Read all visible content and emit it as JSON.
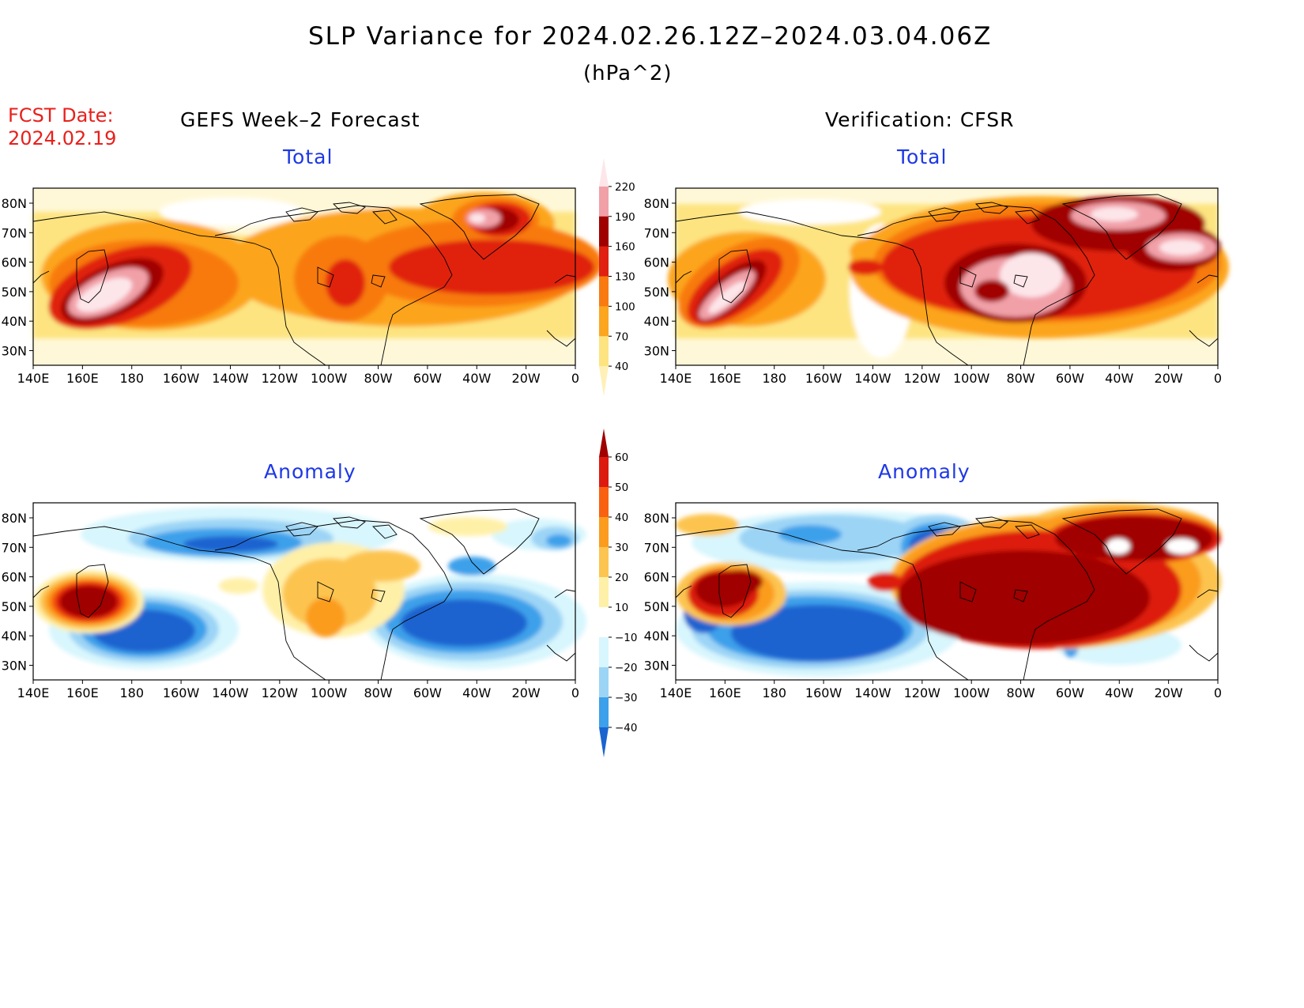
{
  "title": "SLP Variance for 2024.02.26.12Z–2024.03.04.06Z",
  "units": "(hPa^2)",
  "fcst_date_label": "FCST Date:",
  "fcst_date_value": "2024.02.19",
  "columns": {
    "left": "GEFS Week–2 Forecast",
    "right": "Verification: CFSR"
  },
  "panel_labels": {
    "total": "Total",
    "anomaly": "Anomaly"
  },
  "lon_ticks": [
    "140E",
    "160E",
    "180",
    "160W",
    "140W",
    "120W",
    "100W",
    "80W",
    "60W",
    "40W",
    "20W",
    "0"
  ],
  "lat_ticks": [
    "80N",
    "70N",
    "60N",
    "50N",
    "40N",
    "30N"
  ],
  "total_colorbar": {
    "levels": [
      "220",
      "190",
      "160",
      "130",
      "100",
      "70",
      "40"
    ],
    "colors": [
      "#fde6ea",
      "#f1a0a8",
      "#a00000",
      "#e02010",
      "#f87a10",
      "#fca51e",
      "#fde480",
      "#fff0b8"
    ]
  },
  "anomaly_colorbar": {
    "levels": [
      "60",
      "50",
      "40",
      "30",
      "20",
      "10",
      "−10",
      "−20",
      "−30",
      "−40"
    ],
    "colors": [
      "#a00000",
      "#dd1a10",
      "#f96010",
      "#fb9c1e",
      "#fcc450",
      "#fff0a8",
      "#ffffff",
      "#d8f6fd",
      "#9cd4f6",
      "#3ca0ea",
      "#1a64d0"
    ]
  },
  "chart_data": [
    {
      "type": "heatmap",
      "panel": "GEFS Week–2 Forecast – Total",
      "xlim": [
        "140E",
        "0"
      ],
      "ylim": [
        "25N",
        "85N"
      ],
      "features": [
        {
          "region": "NW Pacific (near Kamchatka)",
          "value_range": "190–220+"
        },
        {
          "region": "Greenland",
          "value_range": "190–220+"
        },
        {
          "region": "North Atlantic / Labrador Sea",
          "value_range": "130–160"
        },
        {
          "region": "Central North America",
          "value_range": "130–160"
        }
      ]
    },
    {
      "type": "heatmap",
      "panel": "Verification: CFSR – Total",
      "xlim": [
        "140E",
        "0"
      ],
      "ylim": [
        "25N",
        "85N"
      ],
      "features": [
        {
          "region": "Hudson Bay / Eastern Canada",
          "value_range": "220+"
        },
        {
          "region": "Greenland / Nordic Seas",
          "value_range": "190–220+"
        },
        {
          "region": "NW Pacific",
          "value_range": "190–220+"
        }
      ]
    },
    {
      "type": "heatmap",
      "panel": "GEFS Week–2 Forecast – Anomaly",
      "xlim": [
        "140E",
        "0"
      ],
      "ylim": [
        "25N",
        "85N"
      ],
      "features": [
        {
          "region": "NW Pacific",
          "value_range": "50–60+"
        },
        {
          "region": "Central North Pacific",
          "value_range": "−40 or less"
        },
        {
          "region": "Western North Atlantic",
          "value_range": "−40 or less"
        },
        {
          "region": "Arctic north of Alaska",
          "value_range": "−30 to −40"
        }
      ]
    },
    {
      "type": "heatmap",
      "panel": "Verification: CFSR – Anomaly",
      "xlim": [
        "140E",
        "0"
      ],
      "ylim": [
        "25N",
        "85N"
      ],
      "features": [
        {
          "region": "Central/Eastern North America & Greenland",
          "value_range": "60+"
        },
        {
          "region": "Central North Pacific",
          "value_range": "−40 or less"
        },
        {
          "region": "Arctic / Canadian Archipelago",
          "value_range": "−30 to −40"
        }
      ]
    }
  ]
}
